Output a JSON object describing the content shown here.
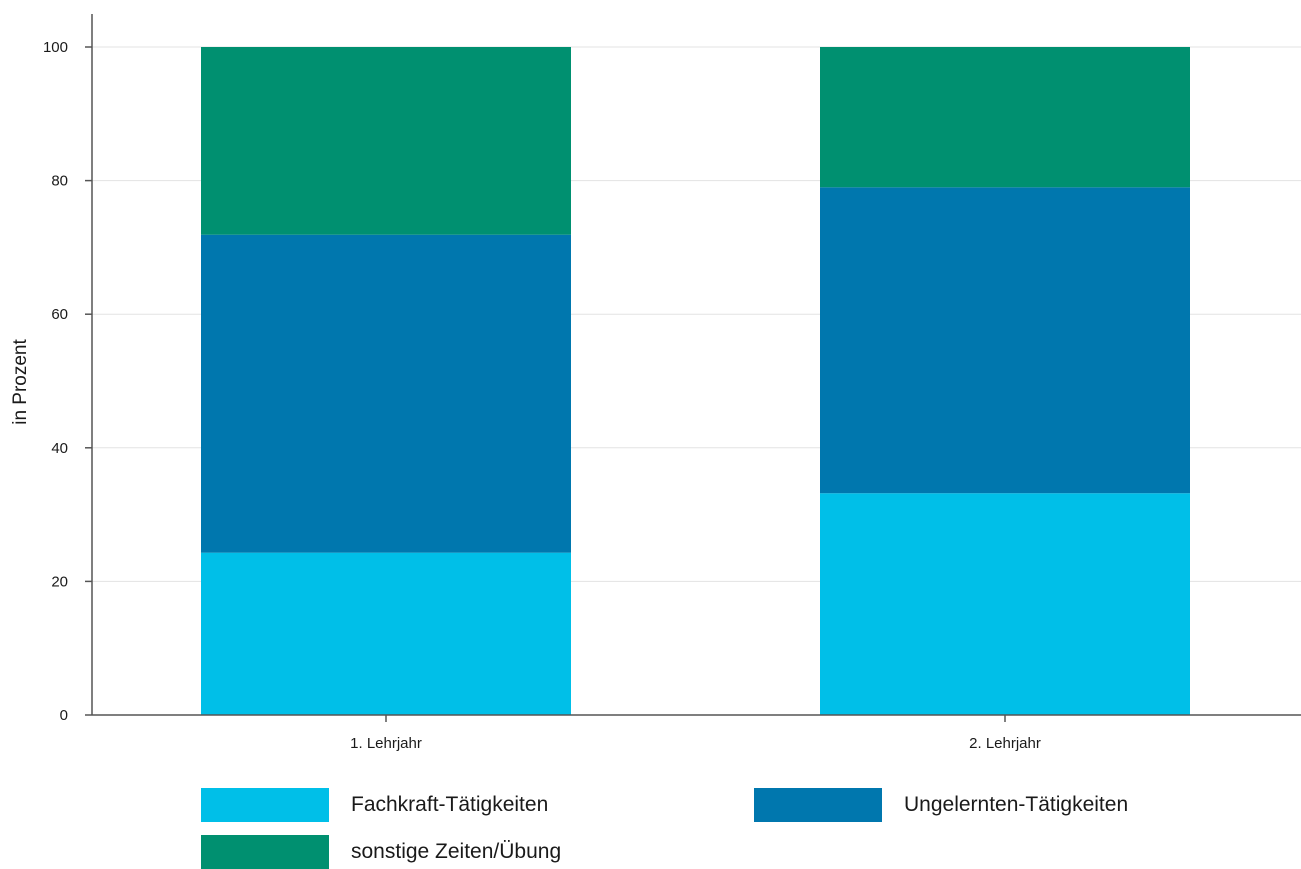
{
  "chart_data": {
    "type": "bar",
    "stacked": true,
    "title": "",
    "xlabel": "",
    "ylabel": "in Prozent",
    "ylim": [
      0,
      100
    ],
    "yticks": [
      0,
      20,
      40,
      60,
      80,
      100
    ],
    "grid": true,
    "legend_position": "bottom",
    "categories": [
      "1. Lehrjahr",
      "2. Lehrjahr"
    ],
    "series": [
      {
        "name": "Fachkraft-Tätigkeiten",
        "color": "#00bfe8",
        "values": [
          24.3,
          33.2
        ]
      },
      {
        "name": "Ungelernten-Tätigkeiten",
        "color": "#0077ae",
        "values": [
          47.6,
          45.8
        ]
      },
      {
        "name": "sonstige Zeiten/Übung",
        "color": "#009070",
        "values": [
          28.1,
          21.0
        ]
      }
    ]
  }
}
